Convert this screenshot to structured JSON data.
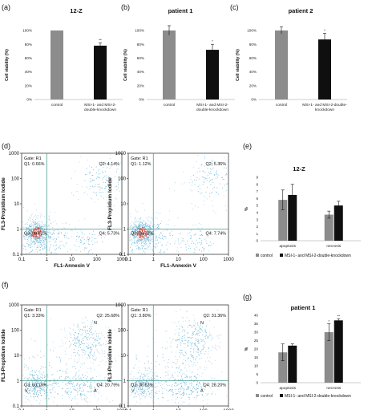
{
  "colors": {
    "control_bar": "#8c8c8c",
    "knockdown_bar": "#0f0f0f",
    "quadrant_line": "#4a9a8e",
    "dot_dense": "#d4453b",
    "dot_mid": "#6fb7d8",
    "dot_sparse": "#a9d2e8"
  },
  "panels": {
    "a": {
      "label": "(a)",
      "title": "12-Z"
    },
    "b": {
      "label": "(b)",
      "title": "patient 1"
    },
    "c": {
      "label": "(c)",
      "title": "patient 2"
    },
    "d": {
      "label": "(d)"
    },
    "e": {
      "label": "(e)",
      "title": "12-Z"
    },
    "f": {
      "label": "(f)"
    },
    "g": {
      "label": "(g)",
      "title": "patient 1"
    }
  },
  "viability": {
    "ylabel": "Cell viability (%)",
    "yticks": [
      "0%",
      "20%",
      "40%",
      "60%",
      "80%",
      "100%"
    ],
    "cat_control": "control",
    "cat_kd_line1": "MSI-1- and MSI-2-",
    "cat_kd_line2": "double-knockdown",
    "cat_kd_b_line1": "MSI-1- and MSI-2-",
    "cat_kd_b_line2": "double-knockdown",
    "cat_kd_c_line1": "MSI-1- and MSI-2-double-",
    "cat_kd_c_line2": "knockdown"
  },
  "facs": {
    "xlabel": "FL1-Annexin V",
    "ylabel": "FL3-Propidium Iodide",
    "xticks": [
      "0.1",
      "1",
      "10",
      "100",
      "1000"
    ],
    "yticks": [
      "1000",
      "100",
      "10",
      "1",
      "0.1"
    ],
    "gate": "Gate: R1",
    "d_left": {
      "q1": "Q1: 0.66%",
      "q2": "Q2: 4.14%",
      "q3": "Q3: 89.57%",
      "q4": "Q4: 5.73%"
    },
    "d_right": {
      "q1": "Q1: 1.12%",
      "q2": "Q2: 5.36%",
      "q3": "Q3: 86.78%",
      "q4": "Q4: 7.74%"
    },
    "f_left": {
      "q1": "Q1: 3.33%",
      "q2": "Q2: 25.68%",
      "q3": "Q3: 50.19%",
      "q4": "Q4: 20.79%"
    },
    "f_right": {
      "q1": "Q1: 3.80%",
      "q2": "Q2: 31.36%",
      "q3": "Q3: 36.63%",
      "q4": "Q4: 28.20%"
    },
    "region_n": "N",
    "region_v": "V",
    "region_a": "A"
  },
  "legend": {
    "control": "control",
    "knockdown": "MSI-1- and MSI-2-double-knockdown"
  },
  "chart_data": [
    {
      "panel": "a",
      "type": "bar",
      "title": "12-Z",
      "ylabel": "Cell viability (%)",
      "categories": [
        "control",
        "MSI-1- and MSI-2-double-knockdown"
      ],
      "values": [
        100,
        78
      ],
      "errors": [
        0,
        4
      ],
      "ylim": [
        0,
        100
      ],
      "significance": [
        "",
        "**"
      ]
    },
    {
      "panel": "b",
      "type": "bar",
      "title": "patient 1",
      "ylabel": "Cell viability (%)",
      "categories": [
        "control",
        "MSI-1- and MSI-2-double-knockdown"
      ],
      "values": [
        100,
        72
      ],
      "errors": [
        7,
        8
      ],
      "ylim": [
        0,
        100
      ],
      "significance": [
        "",
        "*"
      ]
    },
    {
      "panel": "c",
      "type": "bar",
      "title": "patient 2",
      "ylabel": "Cell viability (%)",
      "categories": [
        "control",
        "MSI-1- and MSI-2-double-knockdown"
      ],
      "values": [
        100,
        87
      ],
      "errors": [
        5,
        9
      ],
      "ylim": [
        0,
        100
      ],
      "significance": [
        "",
        "*"
      ]
    },
    {
      "panel": "e",
      "type": "bar",
      "title": "12-Z",
      "ylabel": "%",
      "categories": [
        "apoptosis",
        "necrosis"
      ],
      "yticks": [
        0,
        1,
        2,
        3,
        4,
        5,
        6,
        7,
        8,
        9
      ],
      "ylim": [
        0,
        9
      ],
      "series": [
        {
          "name": "control",
          "values": [
            5.8,
            3.7
          ],
          "errors": [
            1.4,
            0.5
          ]
        },
        {
          "name": "MSI-1- and MSI-2-double-knockdown",
          "values": [
            6.5,
            5.0
          ],
          "errors": [
            1.5,
            0.6
          ]
        }
      ],
      "significance": [
        [
          "",
          ""
        ],
        [
          "",
          ""
        ]
      ]
    },
    {
      "panel": "g",
      "type": "bar",
      "title": "patient 1",
      "ylabel": "%",
      "categories": [
        "apoptosis",
        "necrosis"
      ],
      "yticks": [
        0,
        5,
        10,
        15,
        20,
        25,
        30,
        35,
        40
      ],
      "ylim": [
        0,
        40
      ],
      "series": [
        {
          "name": "control",
          "values": [
            18,
            30
          ],
          "errors": [
            5,
            5
          ]
        },
        {
          "name": "MSI-1- and MSI-2-double-knockdown",
          "values": [
            22,
            37
          ],
          "errors": [
            1,
            1
          ]
        }
      ],
      "significance": [
        [
          "",
          "*"
        ],
        [
          "",
          "**"
        ]
      ]
    }
  ]
}
